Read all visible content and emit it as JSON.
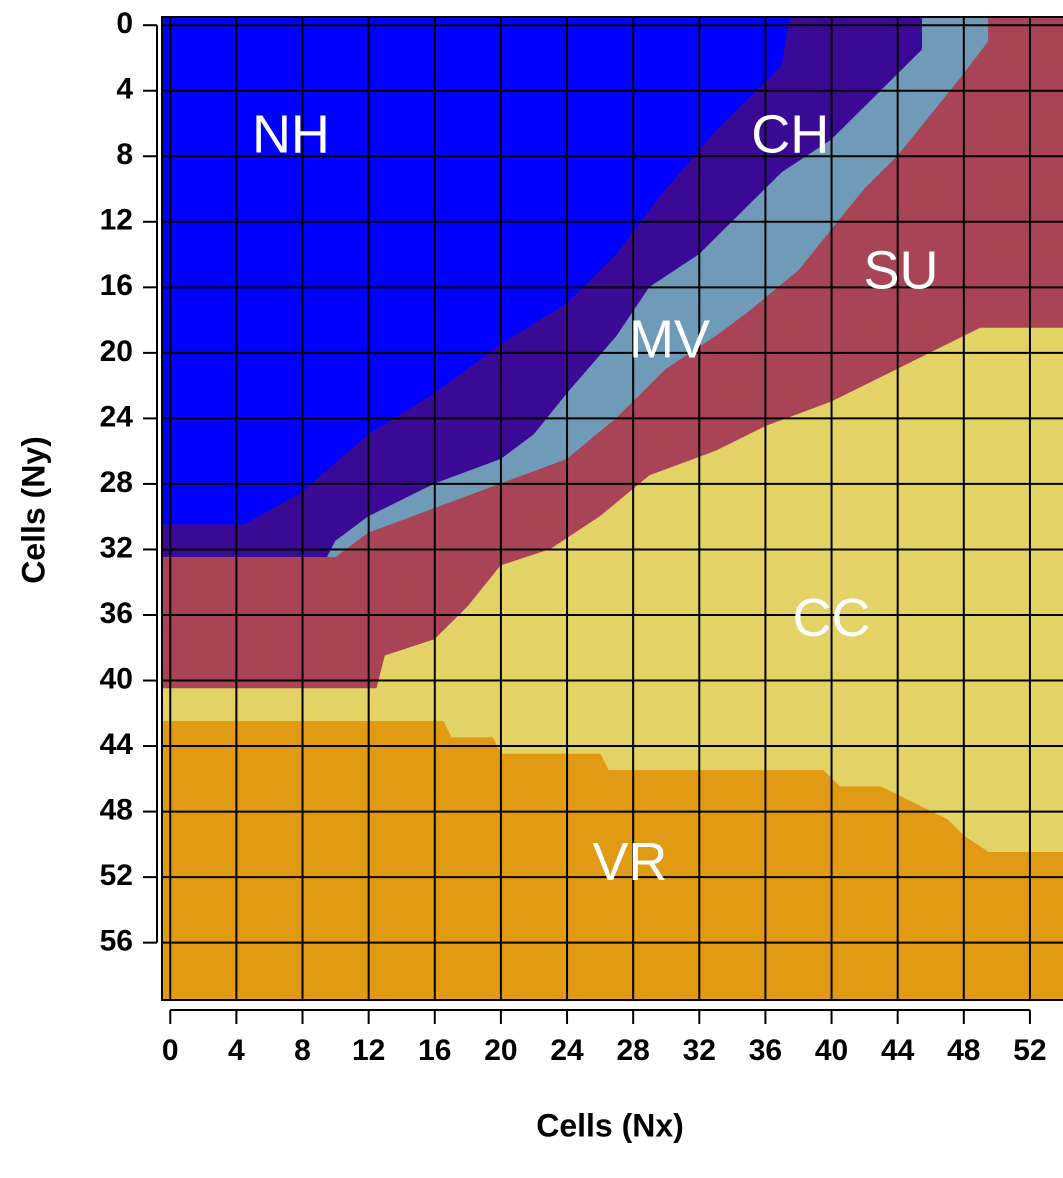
{
  "chart_data": {
    "type": "region",
    "xlabel": "Cells (Nx)",
    "ylabel": "Cells (Ny)",
    "xlim": [
      -0.5,
      54
    ],
    "ylim": [
      -0.5,
      59.5
    ],
    "y_inverted": true,
    "xticks": [
      0,
      4,
      8,
      12,
      16,
      20,
      24,
      28,
      32,
      36,
      40,
      44,
      48,
      52
    ],
    "yticks": [
      0,
      4,
      8,
      12,
      16,
      20,
      24,
      28,
      32,
      36,
      40,
      44,
      48,
      52,
      56
    ],
    "grid": true,
    "regions": [
      {
        "name": "NH",
        "color": "#0000ff"
      },
      {
        "name": "CH",
        "color": "#3a0a94"
      },
      {
        "name": "MV",
        "color": "#6f9bb8"
      },
      {
        "name": "SU",
        "color": "#a84455"
      },
      {
        "name": "CC",
        "color": "#e3d266"
      },
      {
        "name": "VR",
        "color": "#e19a14"
      }
    ],
    "boundaries": [
      {
        "x": [
          -0.5,
          4.5,
          8,
          12,
          16,
          20,
          24,
          27,
          30,
          33,
          35,
          37,
          37.5
        ],
        "y": [
          30.5,
          30.5,
          28.5,
          25,
          22.5,
          19.5,
          17,
          14,
          10,
          6.5,
          4.5,
          2.5,
          -0.5
        ]
      },
      {
        "x": [
          -0.5,
          9.5,
          10,
          12,
          16,
          20,
          22,
          24,
          27,
          29,
          32,
          35,
          37,
          40,
          42,
          44,
          45.5,
          45.5
        ],
        "y": [
          32.5,
          32.5,
          31.5,
          30,
          28,
          26.5,
          25,
          22.5,
          19,
          16,
          14,
          11,
          9,
          7,
          5,
          3,
          1.5,
          -0.5
        ]
      },
      {
        "x": [
          -0.5,
          10,
          12,
          16,
          20,
          24,
          27,
          30,
          33,
          35,
          38,
          40,
          42,
          44,
          46,
          48,
          49.5,
          49.5
        ],
        "y": [
          32.5,
          32.5,
          31,
          29.5,
          28,
          26.5,
          24,
          21,
          19,
          17.5,
          15,
          12.5,
          10,
          8,
          5.5,
          3,
          1,
          -0.5
        ]
      },
      {
        "x": [
          -0.5,
          12.5,
          13,
          16,
          18,
          20,
          23,
          26,
          29,
          33,
          36,
          40,
          44,
          46,
          48,
          49,
          54
        ],
        "y": [
          40.5,
          40.5,
          38.5,
          37.5,
          35.5,
          33,
          32,
          30,
          27.5,
          26,
          24.5,
          23,
          21,
          20,
          19,
          18.5,
          18.5
        ]
      },
      {
        "x": [
          -0.5,
          16.5,
          17,
          19.5,
          20,
          26,
          26.5,
          39.5,
          40.5,
          43,
          45,
          47,
          48,
          49.5,
          54
        ],
        "y": [
          42.5,
          42.5,
          43.5,
          43.5,
          44.5,
          44.5,
          45.5,
          45.5,
          46.5,
          46.5,
          47.5,
          48.5,
          49.5,
          50.5,
          50.5
        ]
      }
    ]
  }
}
